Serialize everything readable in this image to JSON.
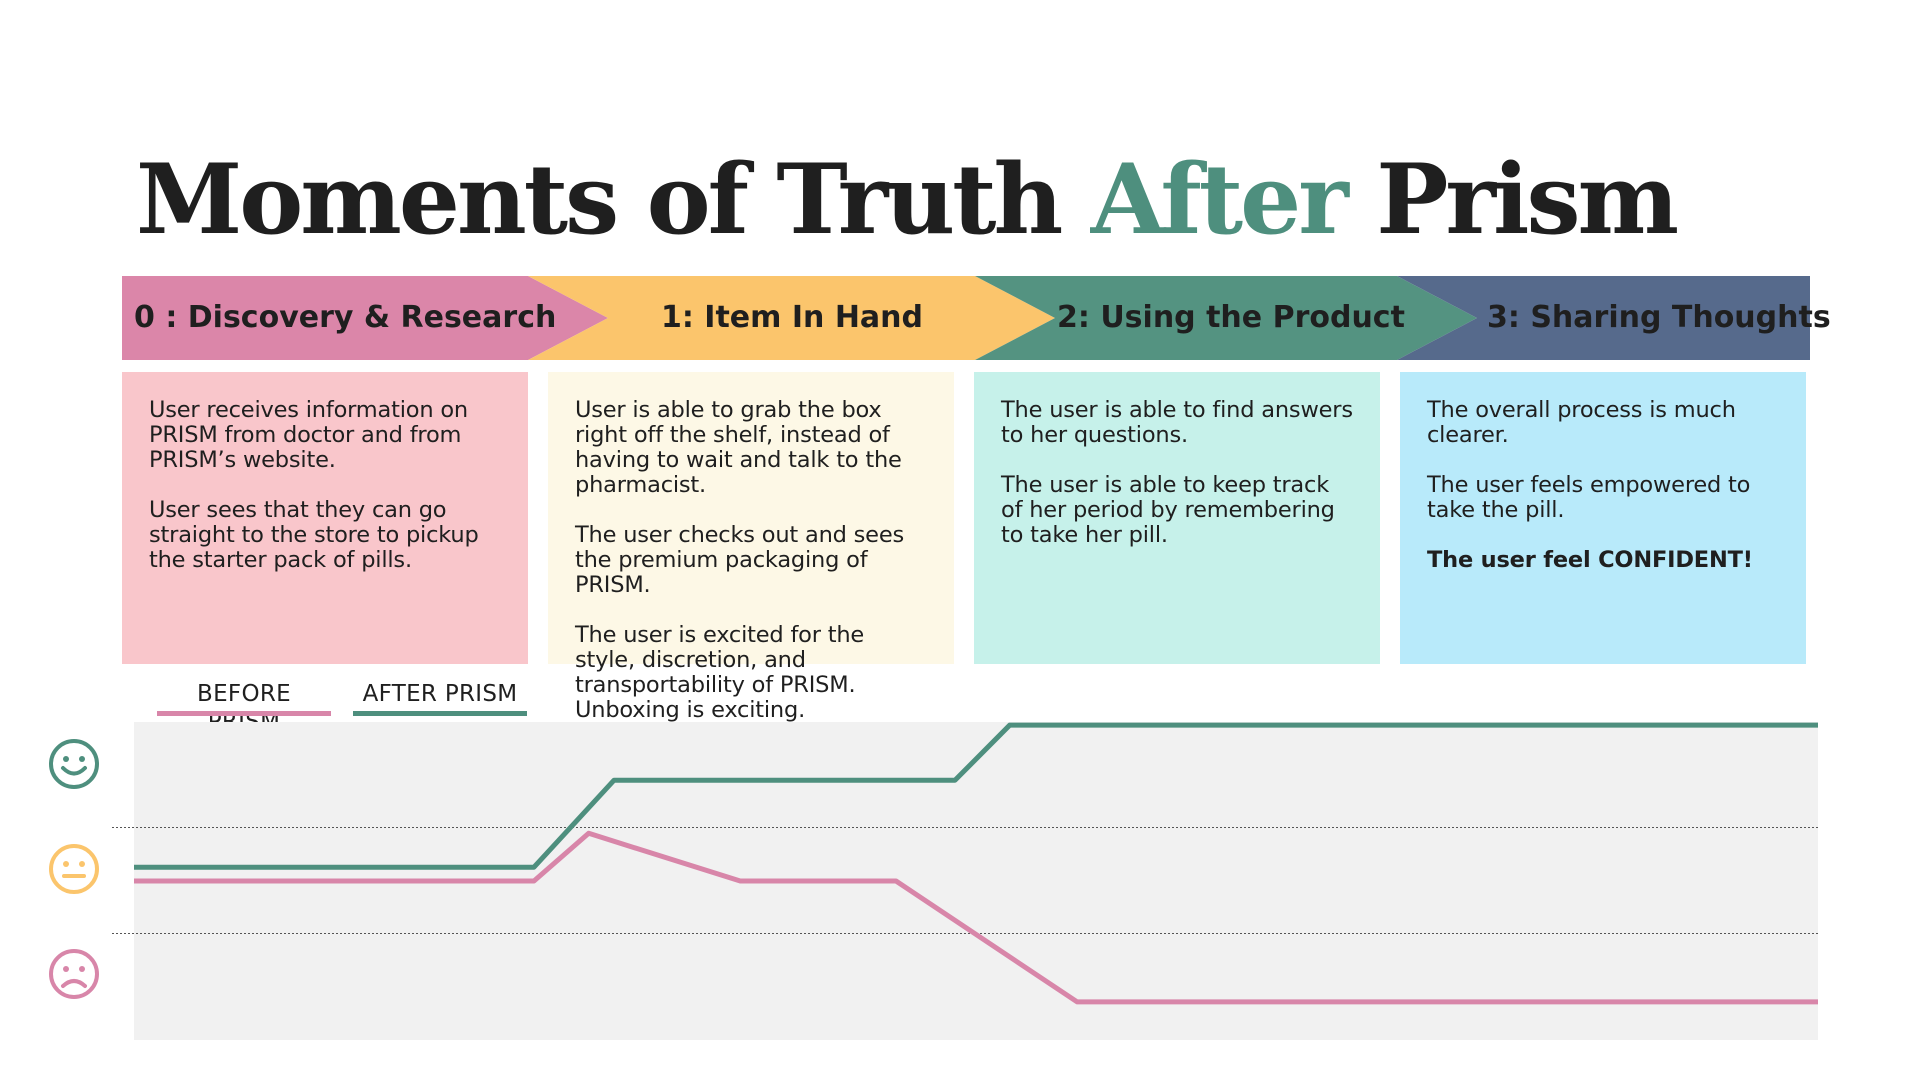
{
  "title": {
    "part1": "Moments of Truth ",
    "accent": "After",
    "part2": " Prism"
  },
  "colors": {
    "stage0": "#db86a9",
    "stage1": "#fbc56c",
    "stage2": "#549381",
    "stage3": "#566a8c",
    "card0": "#f9c6cb",
    "card1": "#fdf8e6",
    "card2": "#c6f1ea",
    "card3": "#b8eafa",
    "before": "#d886a9",
    "after": "#4e8f7e",
    "plot_bg": "#f1f1f1",
    "happy": "#4e8f7e",
    "neutral": "#fbc56c",
    "sad": "#d886a9"
  },
  "stages": [
    {
      "label": "0 : Discovery & Research"
    },
    {
      "label": "1: Item In Hand"
    },
    {
      "label": "2: Using the Product"
    },
    {
      "label": "3: Sharing Thoughts"
    }
  ],
  "cards": [
    {
      "paragraphs": [
        "User receives information on PRISM from doctor and from PRISM’s website.",
        "User sees that they can go straight to the store to pickup the starter pack of pills."
      ],
      "strong": ""
    },
    {
      "paragraphs": [
        "User is able to grab the box right off the shelf, instead of having to wait and talk to the pharmacist.",
        "The user checks out and sees the premium packaging of PRISM.",
        "The user is excited for the style, discretion, and transportability of PRISM. Unboxing is exciting."
      ],
      "strong": ""
    },
    {
      "paragraphs": [
        "The user is able to find answers to her questions.",
        "The user is able to keep track of her period by remembering to take her pill."
      ],
      "strong": ""
    },
    {
      "paragraphs": [
        "The overall process is much clearer.",
        "The user feels empowered to take the pill."
      ],
      "strong": "The user feel CONFIDENT!"
    }
  ],
  "legend": {
    "before": "BEFORE PRISM",
    "after": "AFTER PRISM"
  },
  "faces": [
    "happy-face-icon",
    "neutral-face-icon",
    "sad-face-icon"
  ],
  "chart_data": {
    "type": "line",
    "x_range": [
      0,
      4
    ],
    "y_levels": [
      "sad",
      "neutral",
      "happy"
    ],
    "y_range": [
      0,
      3
    ],
    "series": [
      {
        "name": "BEFORE PRISM",
        "points": [
          [
            0,
            1.5
          ],
          [
            0.95,
            1.5
          ],
          [
            1.08,
            1.95
          ],
          [
            1.44,
            1.5
          ],
          [
            1.81,
            1.5
          ],
          [
            2.24,
            0.36
          ],
          [
            4,
            0.36
          ]
        ]
      },
      {
        "name": "AFTER PRISM",
        "points": [
          [
            0,
            1.63
          ],
          [
            0.95,
            1.63
          ],
          [
            1.14,
            2.45
          ],
          [
            1.95,
            2.45
          ],
          [
            2.08,
            2.97
          ],
          [
            4,
            2.97
          ]
        ]
      }
    ]
  }
}
